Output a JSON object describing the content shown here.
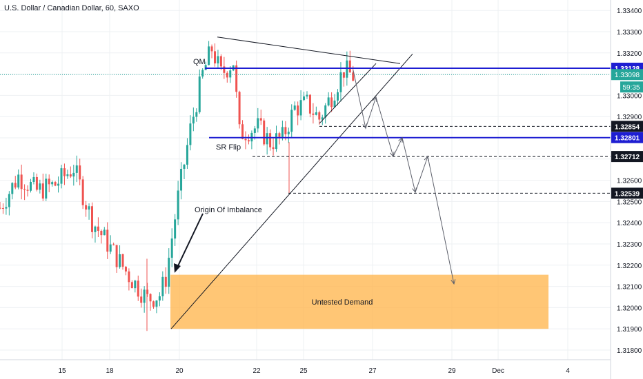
{
  "title": "U.S. Dollar / Canadian Dollar, 60, SAXO",
  "colors": {
    "up": "#26a69a",
    "down": "#ef5350",
    "grid": "#eef0f3",
    "blue_line": "#1e1ed2",
    "demand_fill": "#ffb347",
    "price_tag": "#26a69a",
    "axis_tag": "#131722"
  },
  "chart_data": {
    "type": "candlestick",
    "y_ticks": [
      "1.33400",
      "1.33300",
      "1.33200",
      "1.33100",
      "1.33000",
      "1.32900",
      "1.32800",
      "1.32700",
      "1.32600",
      "1.32500",
      "1.32400",
      "1.32300",
      "1.32200",
      "1.32100",
      "1.32000",
      "1.31900",
      "1.31800"
    ],
    "ylim": [
      1.3176,
      1.3342
    ],
    "x_ticks": [
      "15",
      "18",
      "20",
      "22",
      "25",
      "27",
      "29",
      "Dec",
      "4"
    ],
    "levels": [
      {
        "name": "resistance",
        "value": 1.33128,
        "label": "1.33128",
        "style": "solid-blue"
      },
      {
        "name": "sr-flip",
        "value": 1.32801,
        "label": "1.32801",
        "style": "solid-blue"
      },
      {
        "name": "target-1",
        "value": 1.32854,
        "label": "1.32854",
        "style": "dashed"
      },
      {
        "name": "target-2",
        "value": 1.32712,
        "label": "1.32712",
        "style": "dashed"
      },
      {
        "name": "target-3",
        "value": 1.32539,
        "label": "1.32539",
        "style": "dashed"
      }
    ],
    "current_price": {
      "value": 1.33098,
      "label": "1.33098",
      "countdown": "59:35"
    },
    "annotations": {
      "qm": "QM",
      "sr_flip": "SR Flip",
      "origin": "Origin Of Imbalance",
      "demand": "Untested Demand"
    },
    "demand_zone": [
      1.319,
      1.32155
    ],
    "key_ohlc": [
      [
        1.3245,
        1.325,
        1.324,
        1.3247
      ],
      [
        1.3247,
        1.3268,
        1.3244,
        1.3262
      ],
      [
        1.3262,
        1.3265,
        1.325,
        1.3255
      ],
      [
        1.3255,
        1.3262,
        1.3246,
        1.3258
      ],
      [
        1.3258,
        1.327,
        1.3252,
        1.3266
      ],
      [
        1.3266,
        1.3268,
        1.3238,
        1.3241
      ],
      [
        1.3241,
        1.3252,
        1.3222,
        1.3228
      ],
      [
        1.3228,
        1.3238,
        1.321,
        1.3215
      ],
      [
        1.3215,
        1.3222,
        1.32,
        1.3204
      ],
      [
        1.3204,
        1.3212,
        1.3189,
        1.3206
      ],
      [
        1.3206,
        1.3216,
        1.3203,
        1.3214
      ],
      [
        1.3214,
        1.3258,
        1.321,
        1.3252
      ],
      [
        1.3252,
        1.3286,
        1.3248,
        1.3284
      ],
      [
        1.3284,
        1.3318,
        1.3278,
        1.331
      ],
      [
        1.331,
        1.3328,
        1.329,
        1.3322
      ],
      [
        1.3322,
        1.3326,
        1.3304,
        1.331
      ],
      [
        1.331,
        1.332,
        1.3302,
        1.3316
      ],
      [
        1.3316,
        1.3326,
        1.3276,
        1.3282
      ],
      [
        1.3282,
        1.3292,
        1.327,
        1.3285
      ],
      [
        1.3285,
        1.329,
        1.3268,
        1.3278
      ],
      [
        1.3278,
        1.3286,
        1.3254,
        1.328
      ],
      [
        1.328,
        1.3298,
        1.3277,
        1.3294
      ],
      [
        1.3294,
        1.3302,
        1.3288,
        1.3296
      ],
      [
        1.3296,
        1.33,
        1.3286,
        1.3289
      ],
      [
        1.3289,
        1.3306,
        1.3287,
        1.33
      ],
      [
        1.33,
        1.3318,
        1.3296,
        1.3312
      ],
      [
        1.3312,
        1.332,
        1.3304,
        1.3309
      ]
    ],
    "key_x": [
      0.0,
      0.03,
      0.06,
      0.09,
      0.12,
      0.15,
      0.18,
      0.21,
      0.24,
      0.26,
      0.27,
      0.29,
      0.31,
      0.33,
      0.345,
      0.36,
      0.38,
      0.39,
      0.42,
      0.44,
      0.46,
      0.48,
      0.5,
      0.52,
      0.54,
      0.56,
      0.575
    ]
  }
}
